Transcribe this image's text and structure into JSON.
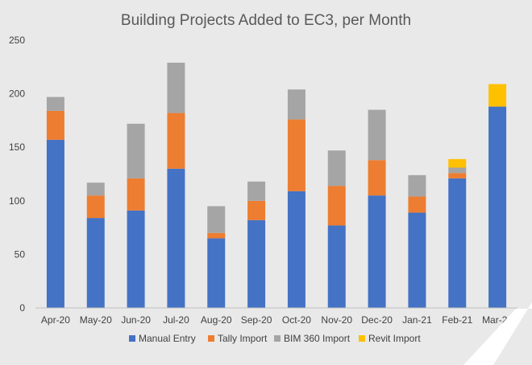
{
  "chart_data": {
    "type": "bar",
    "stacked": true,
    "title": "Building Projects Added to EC3, per Month",
    "xlabel": "",
    "ylabel": "",
    "ylim": [
      0,
      250
    ],
    "yticks": [
      "0",
      "50",
      "100",
      "150",
      "200",
      "250"
    ],
    "grid": false,
    "legend_position": "bottom",
    "categories": [
      "Apr-20",
      "May-20",
      "Jun-20",
      "Jul-20",
      "Aug-20",
      "Sep-20",
      "Oct-20",
      "Nov-20",
      "Dec-20",
      "Jan-21",
      "Feb-21",
      "Mar-21"
    ],
    "series": [
      {
        "name": "Manual Entry",
        "color": "#4472c4",
        "values": [
          157,
          84,
          91,
          130,
          65,
          82,
          109,
          77,
          105,
          89,
          121,
          188
        ]
      },
      {
        "name": "Tally Import",
        "color": "#ed7d31",
        "values": [
          27,
          21,
          30,
          52,
          5,
          18,
          67,
          37,
          33,
          15,
          5,
          0
        ]
      },
      {
        "name": "BIM 360 Import",
        "color": "#a5a5a5",
        "values": [
          13,
          12,
          51,
          47,
          25,
          18,
          28,
          33,
          47,
          20,
          5,
          0
        ]
      },
      {
        "name": "Revit Import",
        "color": "#ffc000",
        "values": [
          0,
          0,
          0,
          0,
          0,
          0,
          0,
          0,
          0,
          0,
          8,
          21
        ]
      }
    ]
  }
}
